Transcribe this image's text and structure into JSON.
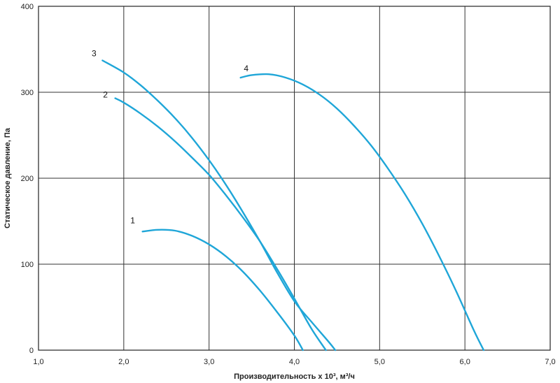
{
  "chart_data": {
    "type": "line",
    "xlabel": "Производительность x 10³, м³/ч",
    "ylabel": "Статическое давление, Па",
    "xlim": [
      1.0,
      7.0
    ],
    "ylim": [
      0,
      400
    ],
    "x_ticks": [
      1.0,
      2.0,
      3.0,
      4.0,
      5.0,
      6.0,
      7.0
    ],
    "x_tick_labels": [
      "1,0",
      "2,0",
      "3,0",
      "4,0",
      "5,0",
      "6,0",
      "7,0"
    ],
    "y_ticks": [
      0,
      100,
      200,
      300,
      400
    ],
    "y_tick_labels": [
      "0",
      "100",
      "200",
      "300",
      "400"
    ],
    "grid": true,
    "line_color": "#1fa6d8",
    "series": [
      {
        "name": "1",
        "points": [
          [
            2.22,
            138
          ],
          [
            2.4,
            140
          ],
          [
            2.6,
            139
          ],
          [
            2.8,
            133
          ],
          [
            3.0,
            123
          ],
          [
            3.2,
            109
          ],
          [
            3.4,
            91
          ],
          [
            3.6,
            69
          ],
          [
            3.8,
            44
          ],
          [
            4.0,
            17
          ],
          [
            4.1,
            0
          ]
        ]
      },
      {
        "name": "2",
        "points": [
          [
            1.9,
            293
          ],
          [
            2.0,
            288
          ],
          [
            2.2,
            275
          ],
          [
            2.4,
            260
          ],
          [
            2.6,
            243
          ],
          [
            2.8,
            224
          ],
          [
            3.0,
            204
          ],
          [
            3.2,
            180
          ],
          [
            3.4,
            154
          ],
          [
            3.6,
            126
          ],
          [
            3.8,
            94
          ],
          [
            4.0,
            60
          ],
          [
            4.2,
            25
          ],
          [
            4.37,
            0
          ]
        ]
      },
      {
        "name": "3",
        "points": [
          [
            1.75,
            337
          ],
          [
            2.0,
            323
          ],
          [
            2.2,
            308
          ],
          [
            2.4,
            290
          ],
          [
            2.6,
            270
          ],
          [
            2.8,
            247
          ],
          [
            3.0,
            221
          ],
          [
            3.2,
            192
          ],
          [
            3.4,
            160
          ],
          [
            3.6,
            126
          ],
          [
            3.8,
            90
          ],
          [
            4.0,
            57
          ],
          [
            4.2,
            33
          ],
          [
            4.4,
            10
          ],
          [
            4.48,
            0
          ]
        ]
      },
      {
        "name": "4",
        "points": [
          [
            3.37,
            317
          ],
          [
            3.5,
            320
          ],
          [
            3.7,
            321
          ],
          [
            3.9,
            317
          ],
          [
            4.1,
            309
          ],
          [
            4.3,
            297
          ],
          [
            4.5,
            281
          ],
          [
            4.7,
            261
          ],
          [
            4.9,
            238
          ],
          [
            5.1,
            211
          ],
          [
            5.3,
            181
          ],
          [
            5.5,
            147
          ],
          [
            5.7,
            109
          ],
          [
            5.9,
            68
          ],
          [
            6.1,
            24
          ],
          [
            6.22,
            0
          ]
        ]
      }
    ]
  }
}
